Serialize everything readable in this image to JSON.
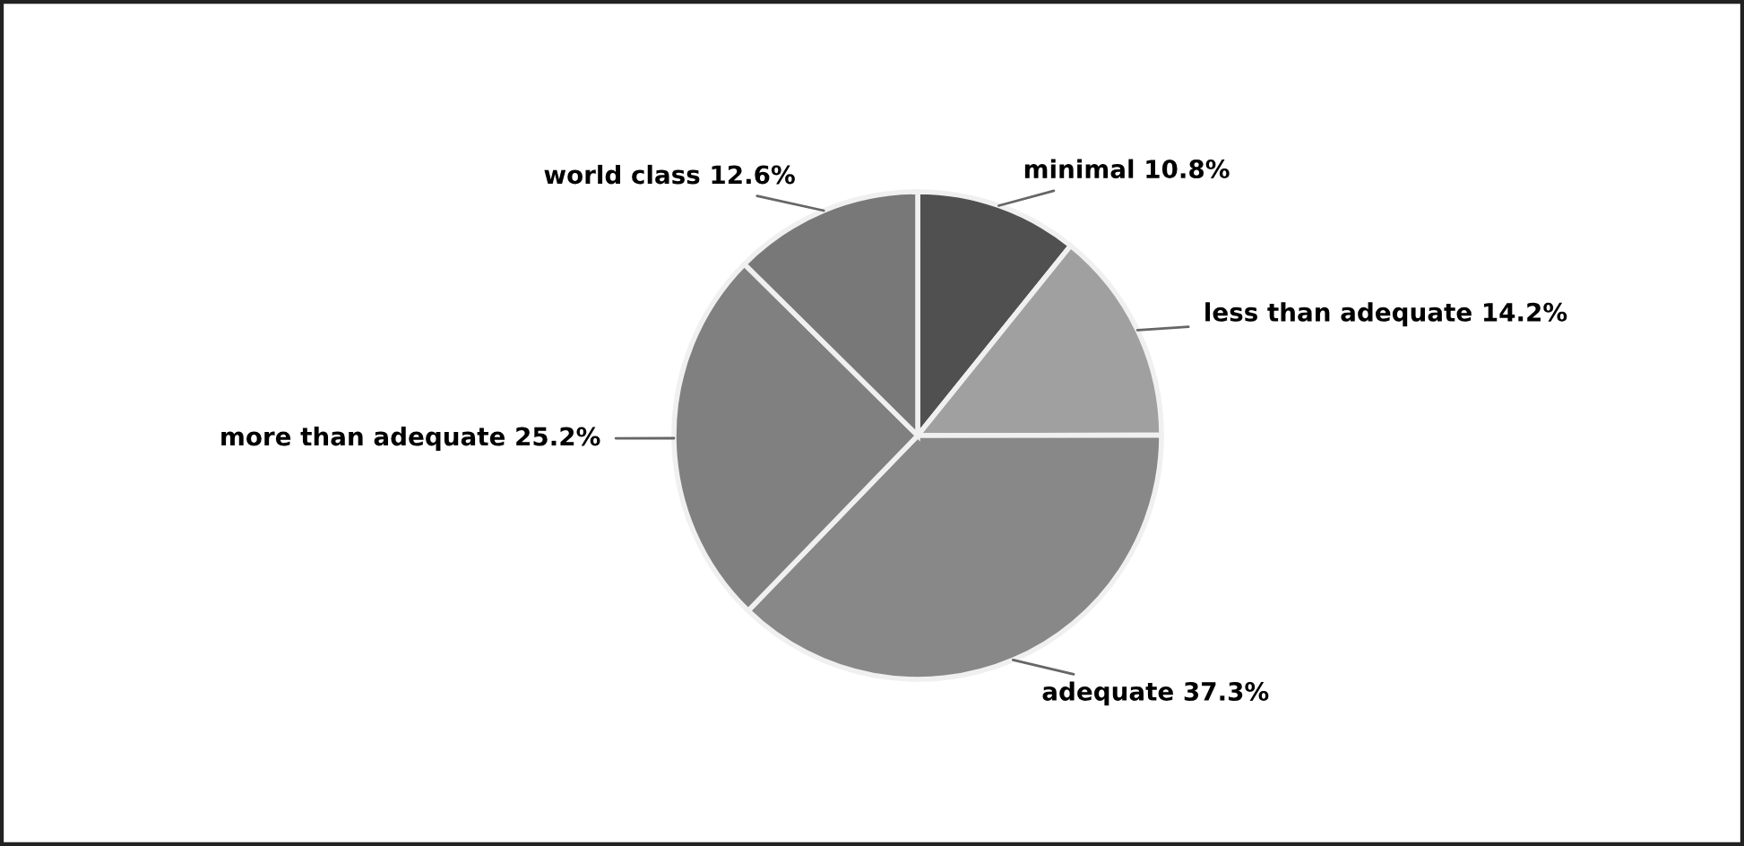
{
  "chart_data": {
    "type": "pie",
    "categories": [
      "minimal",
      "less than adequate",
      "adequate",
      "more than adequate",
      "world class"
    ],
    "values": [
      10.8,
      14.2,
      37.3,
      25.2,
      12.6
    ],
    "value_labels": [
      "10.8%",
      "14.2%",
      "37.3%",
      "25.2%",
      "12.6%"
    ],
    "colors": [
      "#505050",
      "#a0a0a0",
      "#888888",
      "#808080",
      "#787878"
    ]
  }
}
